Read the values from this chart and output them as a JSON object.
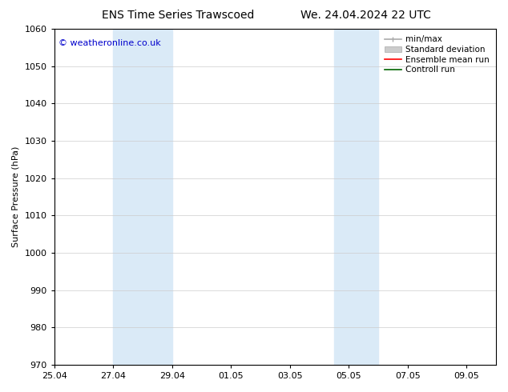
{
  "title_left": "ENS Time Series Trawscoed",
  "title_right": "We. 24.04.2024 22 UTC",
  "ylabel": "Surface Pressure (hPa)",
  "ylim": [
    970,
    1060
  ],
  "yticks": [
    970,
    980,
    990,
    1000,
    1010,
    1020,
    1030,
    1040,
    1050,
    1060
  ],
  "xlim": [
    0,
    15
  ],
  "xtick_labels": [
    "25.04",
    "27.04",
    "29.04",
    "01.05",
    "03.05",
    "05.05",
    "07.05",
    "09.05"
  ],
  "xtick_positions": [
    0,
    2,
    4,
    6,
    8,
    10,
    12,
    14
  ],
  "shaded_regions": [
    {
      "x_start": 2,
      "x_end": 4,
      "color": "#daeaf7"
    },
    {
      "x_start": 9.5,
      "x_end": 11,
      "color": "#daeaf7"
    }
  ],
  "watermark_text": "© weatheronline.co.uk",
  "watermark_color": "#0000cc",
  "legend_entries": [
    {
      "label": "min/max",
      "color": "#aaaaaa",
      "lw": 1.2,
      "type": "minmax"
    },
    {
      "label": "Standard deviation",
      "color": "#cccccc",
      "lw": 8,
      "type": "band"
    },
    {
      "label": "Ensemble mean run",
      "color": "#ff0000",
      "lw": 1.2,
      "type": "line"
    },
    {
      "label": "Controll run",
      "color": "#006400",
      "lw": 1.2,
      "type": "line"
    }
  ],
  "background_color": "#ffffff",
  "plot_bg_color": "#ffffff",
  "grid_color": "#cccccc",
  "title_fontsize": 10,
  "ylabel_fontsize": 8,
  "tick_fontsize": 8,
  "legend_fontsize": 7.5,
  "watermark_fontsize": 8
}
